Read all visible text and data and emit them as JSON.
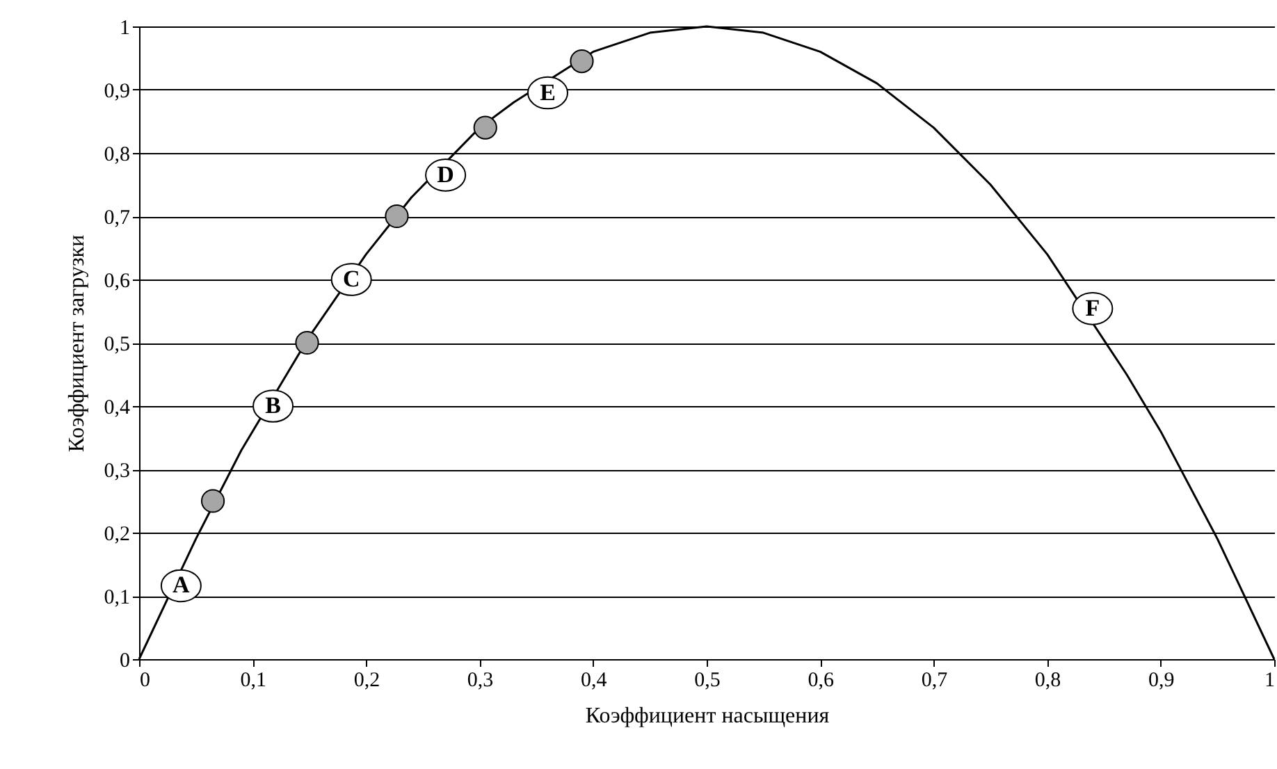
{
  "chart_data": {
    "type": "line",
    "xlabel": "Коэффициент насыщения",
    "ylabel": "Коэффициент загрузки",
    "xlim": [
      0,
      1
    ],
    "ylim": [
      0,
      1
    ],
    "xticks": [
      0,
      {
        "value": 0.1,
        "label": "0,1"
      },
      {
        "value": 0.2,
        "label": "0,2"
      },
      {
        "value": 0.3,
        "label": "0,3"
      },
      {
        "value": 0.4,
        "label": "0,4"
      },
      {
        "value": 0.5,
        "label": "0,5"
      },
      {
        "value": 0.6,
        "label": "0,6"
      },
      {
        "value": 0.7,
        "label": "0,7"
      },
      {
        "value": 0.8,
        "label": "0,8"
      },
      {
        "value": 0.9,
        "label": "0,9"
      },
      1
    ],
    "yticks": [
      0,
      {
        "value": 0.1,
        "label": "0,1"
      },
      {
        "value": 0.2,
        "label": "0,2"
      },
      {
        "value": 0.3,
        "label": "0,3"
      },
      {
        "value": 0.4,
        "label": "0,4"
      },
      {
        "value": 0.5,
        "label": "0,5"
      },
      {
        "value": 0.6,
        "label": "0,6"
      },
      {
        "value": 0.7,
        "label": "0,7"
      },
      {
        "value": 0.8,
        "label": "0,8"
      },
      {
        "value": 0.9,
        "label": "0,9"
      },
      1
    ],
    "grid": "y",
    "series": [
      {
        "color": "#000000",
        "marker": "none",
        "x": [
          0,
          0.05,
          0.09,
          0.15,
          0.2,
          0.24,
          0.3,
          0.33,
          0.4,
          0.45,
          0.5,
          0.55,
          0.6,
          0.65,
          0.7,
          0.75,
          0.8,
          0.87,
          0.9,
          0.95,
          1
        ],
        "values": [
          0,
          0.19,
          0.33,
          0.51,
          0.64,
          0.73,
          0.84,
          0.88,
          0.96,
          0.99,
          1,
          0.99,
          0.96,
          0.91,
          0.84,
          0.75,
          0.64,
          0.45,
          0.36,
          0.19,
          0
        ]
      },
      {
        "type": "scatter",
        "color": "#a6a6a6",
        "marker": "circle",
        "x": [
          0.065,
          0.148,
          0.227,
          0.305,
          0.39
        ],
        "values": [
          0.25,
          0.5,
          0.7,
          0.84,
          0.945
        ]
      }
    ],
    "annotations": [
      {
        "text": "A",
        "x": 0.037,
        "y": 0.116
      },
      {
        "text": "B",
        "x": 0.118,
        "y": 0.4
      },
      {
        "text": "C",
        "x": 0.187,
        "y": 0.6
      },
      {
        "text": "D",
        "x": 0.27,
        "y": 0.765
      },
      {
        "text": "E",
        "x": 0.36,
        "y": 0.895
      },
      {
        "text": "F",
        "x": 0.84,
        "y": 0.554
      }
    ]
  }
}
